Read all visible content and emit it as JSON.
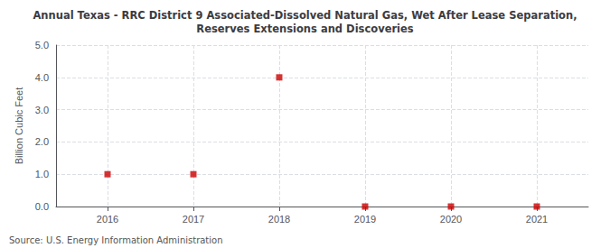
{
  "chart_data": {
    "type": "scatter",
    "title": "Annual Texas - RRC District 9 Associated-Dissolved Natural Gas, Wet After Lease Separation,\nReserves Extensions and Discoveries",
    "ylabel": "Billion Cubic Feet",
    "source": "Source: U.S. Energy Information Administration",
    "x": [
      2016,
      2017,
      2018,
      2019,
      2020,
      2021
    ],
    "values": [
      1.0,
      1.0,
      4.0,
      0.0,
      0.0,
      0.0
    ],
    "xlim": [
      2015.4,
      2021.6
    ],
    "ylim": [
      0.0,
      5.0
    ],
    "xticks": [
      2016,
      2017,
      2018,
      2019,
      2020,
      2021
    ],
    "yticks": [
      {
        "value": 0.0,
        "label": "0.0"
      },
      {
        "value": 1.0,
        "label": "1.0"
      },
      {
        "value": 2.0,
        "label": "2.0"
      },
      {
        "value": 3.0,
        "label": "3.0"
      },
      {
        "value": 4.0,
        "label": "4.0"
      },
      {
        "value": 5.0,
        "label": "5.0"
      }
    ],
    "color": "#cc0000",
    "marker": "square",
    "grid": true
  }
}
